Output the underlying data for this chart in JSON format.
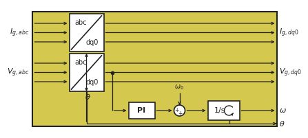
{
  "bg_color": "#d4c94e",
  "box_color": "#ffffff",
  "line_color": "#222222",
  "fig_bg": "#ffffff",
  "left_label_top": "I$_{g,abc}$",
  "left_label_mid": "V$_{g,abc}$",
  "right_label_top": "I$_{g,dq0}$",
  "right_label_mid": "V$_{g,dq0}$",
  "right_label_w": "$\\omega$",
  "right_label_theta": "$\\theta$",
  "block1_label_top": "abc",
  "block1_label_bot": "dq0",
  "block2_label_top": "abc",
  "block2_label_bot": "dq0",
  "pi_label": "PI",
  "integrator_label": "1/s",
  "theta_label": "$\\theta$",
  "omega0_label": "$\\omega_0$"
}
